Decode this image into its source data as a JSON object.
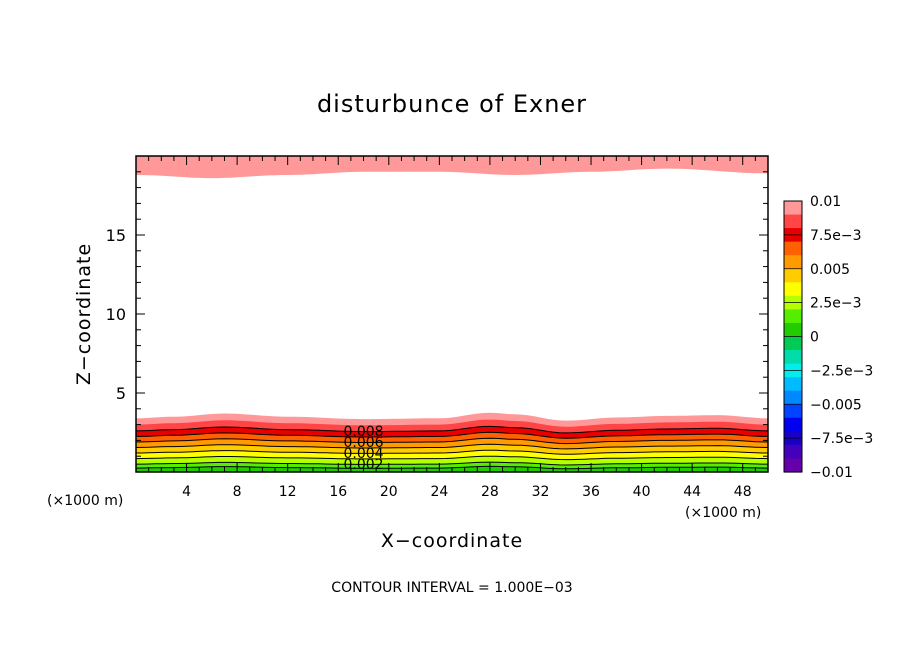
{
  "chart_data": {
    "type": "heatmap",
    "title": "disturbunce of Exner",
    "xlabel": "X−coordinate",
    "ylabel": "Z−coordinate",
    "x_unit": "(×1000 m)",
    "y_unit": "(×1000 m)",
    "footer": "CONTOUR INTERVAL = 1.000E−03",
    "xlim": [
      0,
      50
    ],
    "ylim": [
      0,
      20
    ],
    "x_ticks": [
      4,
      8,
      12,
      16,
      20,
      24,
      28,
      32,
      36,
      40,
      44,
      48
    ],
    "x_tick_labels": [
      "4",
      "8",
      "12",
      "16",
      "20",
      "24",
      "28",
      "32",
      "36",
      "40",
      "44",
      "48"
    ],
    "y_ticks": [
      5,
      10,
      15
    ],
    "y_tick_labels": [
      "5",
      "10",
      "15"
    ],
    "colorbar": {
      "min": -0.01,
      "max": 0.01,
      "tick_values": [
        0.01,
        0.0075,
        0.005,
        0.0025,
        0,
        -0.0025,
        -0.005,
        -0.0075,
        -0.01
      ],
      "tick_labels": [
        "0.01",
        "7.5e−3",
        "0.005",
        "2.5e−3",
        "0",
        "−2.5e−3",
        "−0.005",
        "−7.5e−3",
        "−0.01"
      ],
      "colors": [
        "#ff9999",
        "#ff4545",
        "#e80000",
        "#ff6000",
        "#ff9a00",
        "#ffcc00",
        "#ffff00",
        "#b4ff00",
        "#55ee00",
        "#22cc00",
        "#00cc55",
        "#00ddaa",
        "#00eeee",
        "#00bbff",
        "#0088ff",
        "#0044ff",
        "#0000ee",
        "#1800c8",
        "#4400bb",
        "#6600aa"
      ]
    },
    "contour_labels": [
      {
        "text": "0.008",
        "x": 18,
        "z": 2.6
      },
      {
        "text": "0.006",
        "x": 18,
        "z": 1.9
      },
      {
        "text": "0.004",
        "x": 18,
        "z": 1.2
      },
      {
        "text": "0.002",
        "x": 18,
        "z": 0.5
      }
    ],
    "top_layer": {
      "value": 0.01,
      "profile": [
        [
          0,
          18.8
        ],
        [
          6,
          18.6
        ],
        [
          12,
          18.8
        ],
        [
          18,
          19.0
        ],
        [
          24,
          19.0
        ],
        [
          30,
          18.8
        ],
        [
          36,
          19.0
        ],
        [
          42,
          19.2
        ],
        [
          50,
          18.9
        ]
      ]
    },
    "bottom_layer": {
      "levels": [
        0.0095,
        0.009,
        0.008,
        0.007,
        0.006,
        0.005,
        0.004,
        0.003,
        0.002,
        0.001
      ],
      "colors": [
        "#ff9999",
        "#ff4545",
        "#e80000",
        "#ff6000",
        "#ff9a00",
        "#ffcc00",
        "#ffff00",
        "#b4ff00",
        "#55ee00",
        "#22cc00"
      ],
      "base_heights": [
        3.4,
        3.0,
        2.6,
        2.25,
        1.9,
        1.55,
        1.2,
        0.85,
        0.5,
        0.25
      ],
      "undulation": [
        [
          0,
          0
        ],
        [
          3,
          0.1
        ],
        [
          7,
          0.3
        ],
        [
          12,
          0.1
        ],
        [
          18,
          -0.05
        ],
        [
          24,
          0
        ],
        [
          28,
          0.35
        ],
        [
          30,
          0.25
        ],
        [
          34,
          -0.15
        ],
        [
          38,
          0.05
        ],
        [
          42,
          0.15
        ],
        [
          46,
          0.2
        ],
        [
          50,
          0.0
        ]
      ]
    }
  }
}
